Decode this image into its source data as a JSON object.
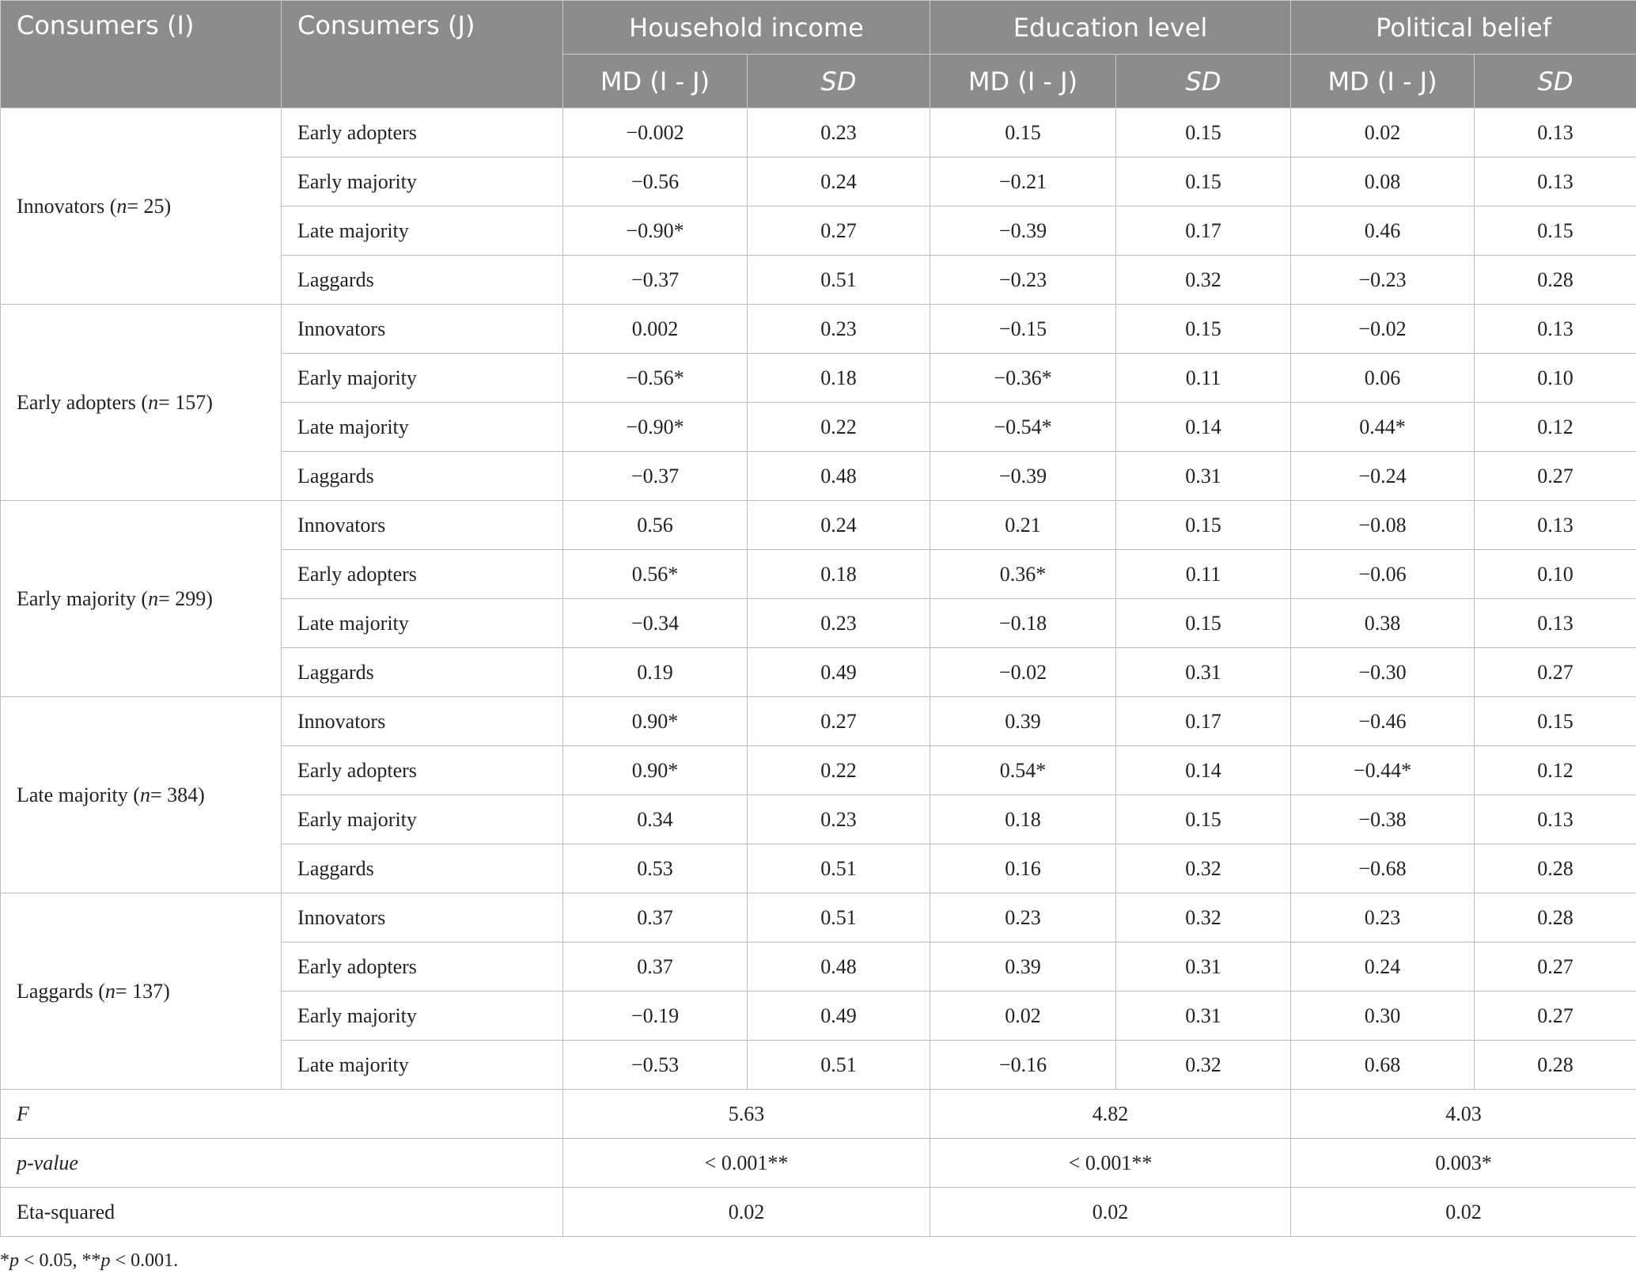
{
  "headers": {
    "consumers_i": "Consumers (I)",
    "consumers_j": "Consumers (J)",
    "household_income": "Household income",
    "education_level": "Education level",
    "political_belief": "Political belief",
    "md": "MD (I - J)",
    "sd": "SD"
  },
  "groups": [
    {
      "name": "Innovators",
      "n_prefix": "n",
      "n_value": "= 25",
      "rows": [
        {
          "j": "Early adopters",
          "hi_md": "−0.002",
          "hi_sd": "0.23",
          "ed_md": "0.15",
          "ed_sd": "0.15",
          "po_md": "0.02",
          "po_sd": "0.13"
        },
        {
          "j": "Early majority",
          "hi_md": "−0.56",
          "hi_sd": "0.24",
          "ed_md": "−0.21",
          "ed_sd": "0.15",
          "po_md": "0.08",
          "po_sd": "0.13"
        },
        {
          "j": "Late majority",
          "hi_md": "−0.90*",
          "hi_sd": "0.27",
          "ed_md": "−0.39",
          "ed_sd": "0.17",
          "po_md": "0.46",
          "po_sd": "0.15"
        },
        {
          "j": "Laggards",
          "hi_md": "−0.37",
          "hi_sd": "0.51",
          "ed_md": "−0.23",
          "ed_sd": "0.32",
          "po_md": "−0.23",
          "po_sd": "0.28"
        }
      ]
    },
    {
      "name": "Early adopters",
      "n_prefix": "n",
      "n_value": "= 157",
      "rows": [
        {
          "j": "Innovators",
          "hi_md": "0.002",
          "hi_sd": "0.23",
          "ed_md": "−0.15",
          "ed_sd": "0.15",
          "po_md": "−0.02",
          "po_sd": "0.13"
        },
        {
          "j": "Early majority",
          "hi_md": "−0.56*",
          "hi_sd": "0.18",
          "ed_md": "−0.36*",
          "ed_sd": "0.11",
          "po_md": "0.06",
          "po_sd": "0.10"
        },
        {
          "j": "Late majority",
          "hi_md": "−0.90*",
          "hi_sd": "0.22",
          "ed_md": "−0.54*",
          "ed_sd": "0.14",
          "po_md": "0.44*",
          "po_sd": "0.12"
        },
        {
          "j": "Laggards",
          "hi_md": "−0.37",
          "hi_sd": "0.48",
          "ed_md": "−0.39",
          "ed_sd": "0.31",
          "po_md": "−0.24",
          "po_sd": "0.27"
        }
      ]
    },
    {
      "name": "Early majority",
      "n_prefix": "n",
      "n_value": "= 299",
      "rows": [
        {
          "j": "Innovators",
          "hi_md": "0.56",
          "hi_sd": "0.24",
          "ed_md": "0.21",
          "ed_sd": "0.15",
          "po_md": "−0.08",
          "po_sd": "0.13"
        },
        {
          "j": "Early adopters",
          "hi_md": "0.56*",
          "hi_sd": "0.18",
          "ed_md": "0.36*",
          "ed_sd": "0.11",
          "po_md": "−0.06",
          "po_sd": "0.10"
        },
        {
          "j": "Late majority",
          "hi_md": "−0.34",
          "hi_sd": "0.23",
          "ed_md": "−0.18",
          "ed_sd": "0.15",
          "po_md": "0.38",
          "po_sd": "0.13"
        },
        {
          "j": "Laggards",
          "hi_md": "0.19",
          "hi_sd": "0.49",
          "ed_md": "−0.02",
          "ed_sd": "0.31",
          "po_md": "−0.30",
          "po_sd": "0.27"
        }
      ]
    },
    {
      "name": "Late majority",
      "n_prefix": "n",
      "n_value": "= 384",
      "rows": [
        {
          "j": "Innovators",
          "hi_md": "0.90*",
          "hi_sd": "0.27",
          "ed_md": "0.39",
          "ed_sd": "0.17",
          "po_md": "−0.46",
          "po_sd": "0.15"
        },
        {
          "j": "Early adopters",
          "hi_md": "0.90*",
          "hi_sd": "0.22",
          "ed_md": "0.54*",
          "ed_sd": "0.14",
          "po_md": "−0.44*",
          "po_sd": "0.12"
        },
        {
          "j": "Early majority",
          "hi_md": "0.34",
          "hi_sd": "0.23",
          "ed_md": "0.18",
          "ed_sd": "0.15",
          "po_md": "−0.38",
          "po_sd": "0.13"
        },
        {
          "j": "Laggards",
          "hi_md": "0.53",
          "hi_sd": "0.51",
          "ed_md": "0.16",
          "ed_sd": "0.32",
          "po_md": "−0.68",
          "po_sd": "0.28"
        }
      ]
    },
    {
      "name": "Laggards",
      "n_prefix": "n",
      "n_value": "= 137",
      "rows": [
        {
          "j": "Innovators",
          "hi_md": "0.37",
          "hi_sd": "0.51",
          "ed_md": "0.23",
          "ed_sd": "0.32",
          "po_md": "0.23",
          "po_sd": "0.28"
        },
        {
          "j": "Early adopters",
          "hi_md": "0.37",
          "hi_sd": "0.48",
          "ed_md": "0.39",
          "ed_sd": "0.31",
          "po_md": "0.24",
          "po_sd": "0.27"
        },
        {
          "j": "Early majority",
          "hi_md": "−0.19",
          "hi_sd": "0.49",
          "ed_md": "0.02",
          "ed_sd": "0.31",
          "po_md": "0.30",
          "po_sd": "0.27"
        },
        {
          "j": "Late majority",
          "hi_md": "−0.53",
          "hi_sd": "0.51",
          "ed_md": "−0.16",
          "ed_sd": "0.32",
          "po_md": "0.68",
          "po_sd": "0.28"
        }
      ]
    }
  ],
  "stats": [
    {
      "label": "F",
      "italic": true,
      "hi": "5.63",
      "ed": "4.82",
      "po": "4.03"
    },
    {
      "label": "p-value",
      "italic": true,
      "hi": "< 0.001**",
      "ed": "< 0.001**",
      "po": "0.003*"
    },
    {
      "label": "Eta-squared",
      "italic": false,
      "hi": "0.02",
      "ed": "0.02",
      "po": "0.02"
    }
  ],
  "footnote": {
    "p1_prefix": "*",
    "p1_sym": "p",
    "p1_rest": " < 0.05, **",
    "p2_sym": "p",
    "p2_rest": " < 0.001."
  }
}
